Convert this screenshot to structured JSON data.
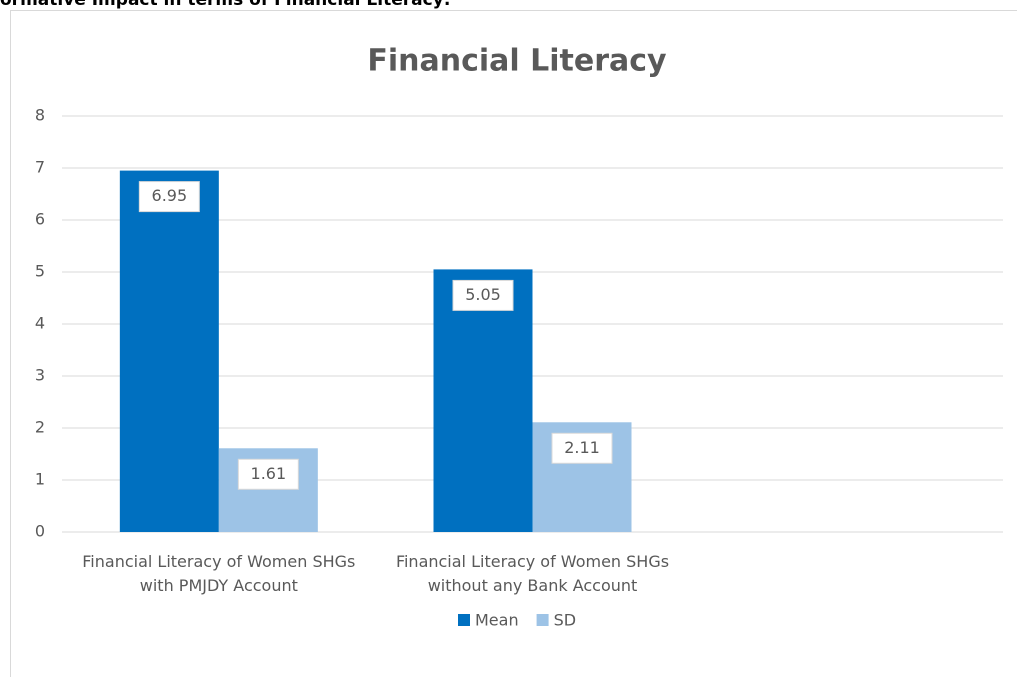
{
  "caption": "ormative Impact in terms of Financial Literacy:",
  "chart_data": {
    "type": "bar",
    "title": "Financial Literacy",
    "categories": [
      "Financial Literacy of Women SHGs with PMJDY Account",
      "Financial Literacy of Women SHGs without any Bank Account",
      null
    ],
    "series": [
      {
        "name": "Mean",
        "color": "#0070c0",
        "values": [
          6.95,
          5.05,
          null
        ]
      },
      {
        "name": "SD",
        "color": "#9dc3e6",
        "values": [
          1.61,
          2.11,
          null
        ]
      }
    ],
    "ylim": [
      0,
      8
    ],
    "yticks": [
      0,
      1,
      2,
      3,
      4,
      5,
      6,
      7,
      8
    ],
    "grid": true,
    "legend": "bottom"
  }
}
